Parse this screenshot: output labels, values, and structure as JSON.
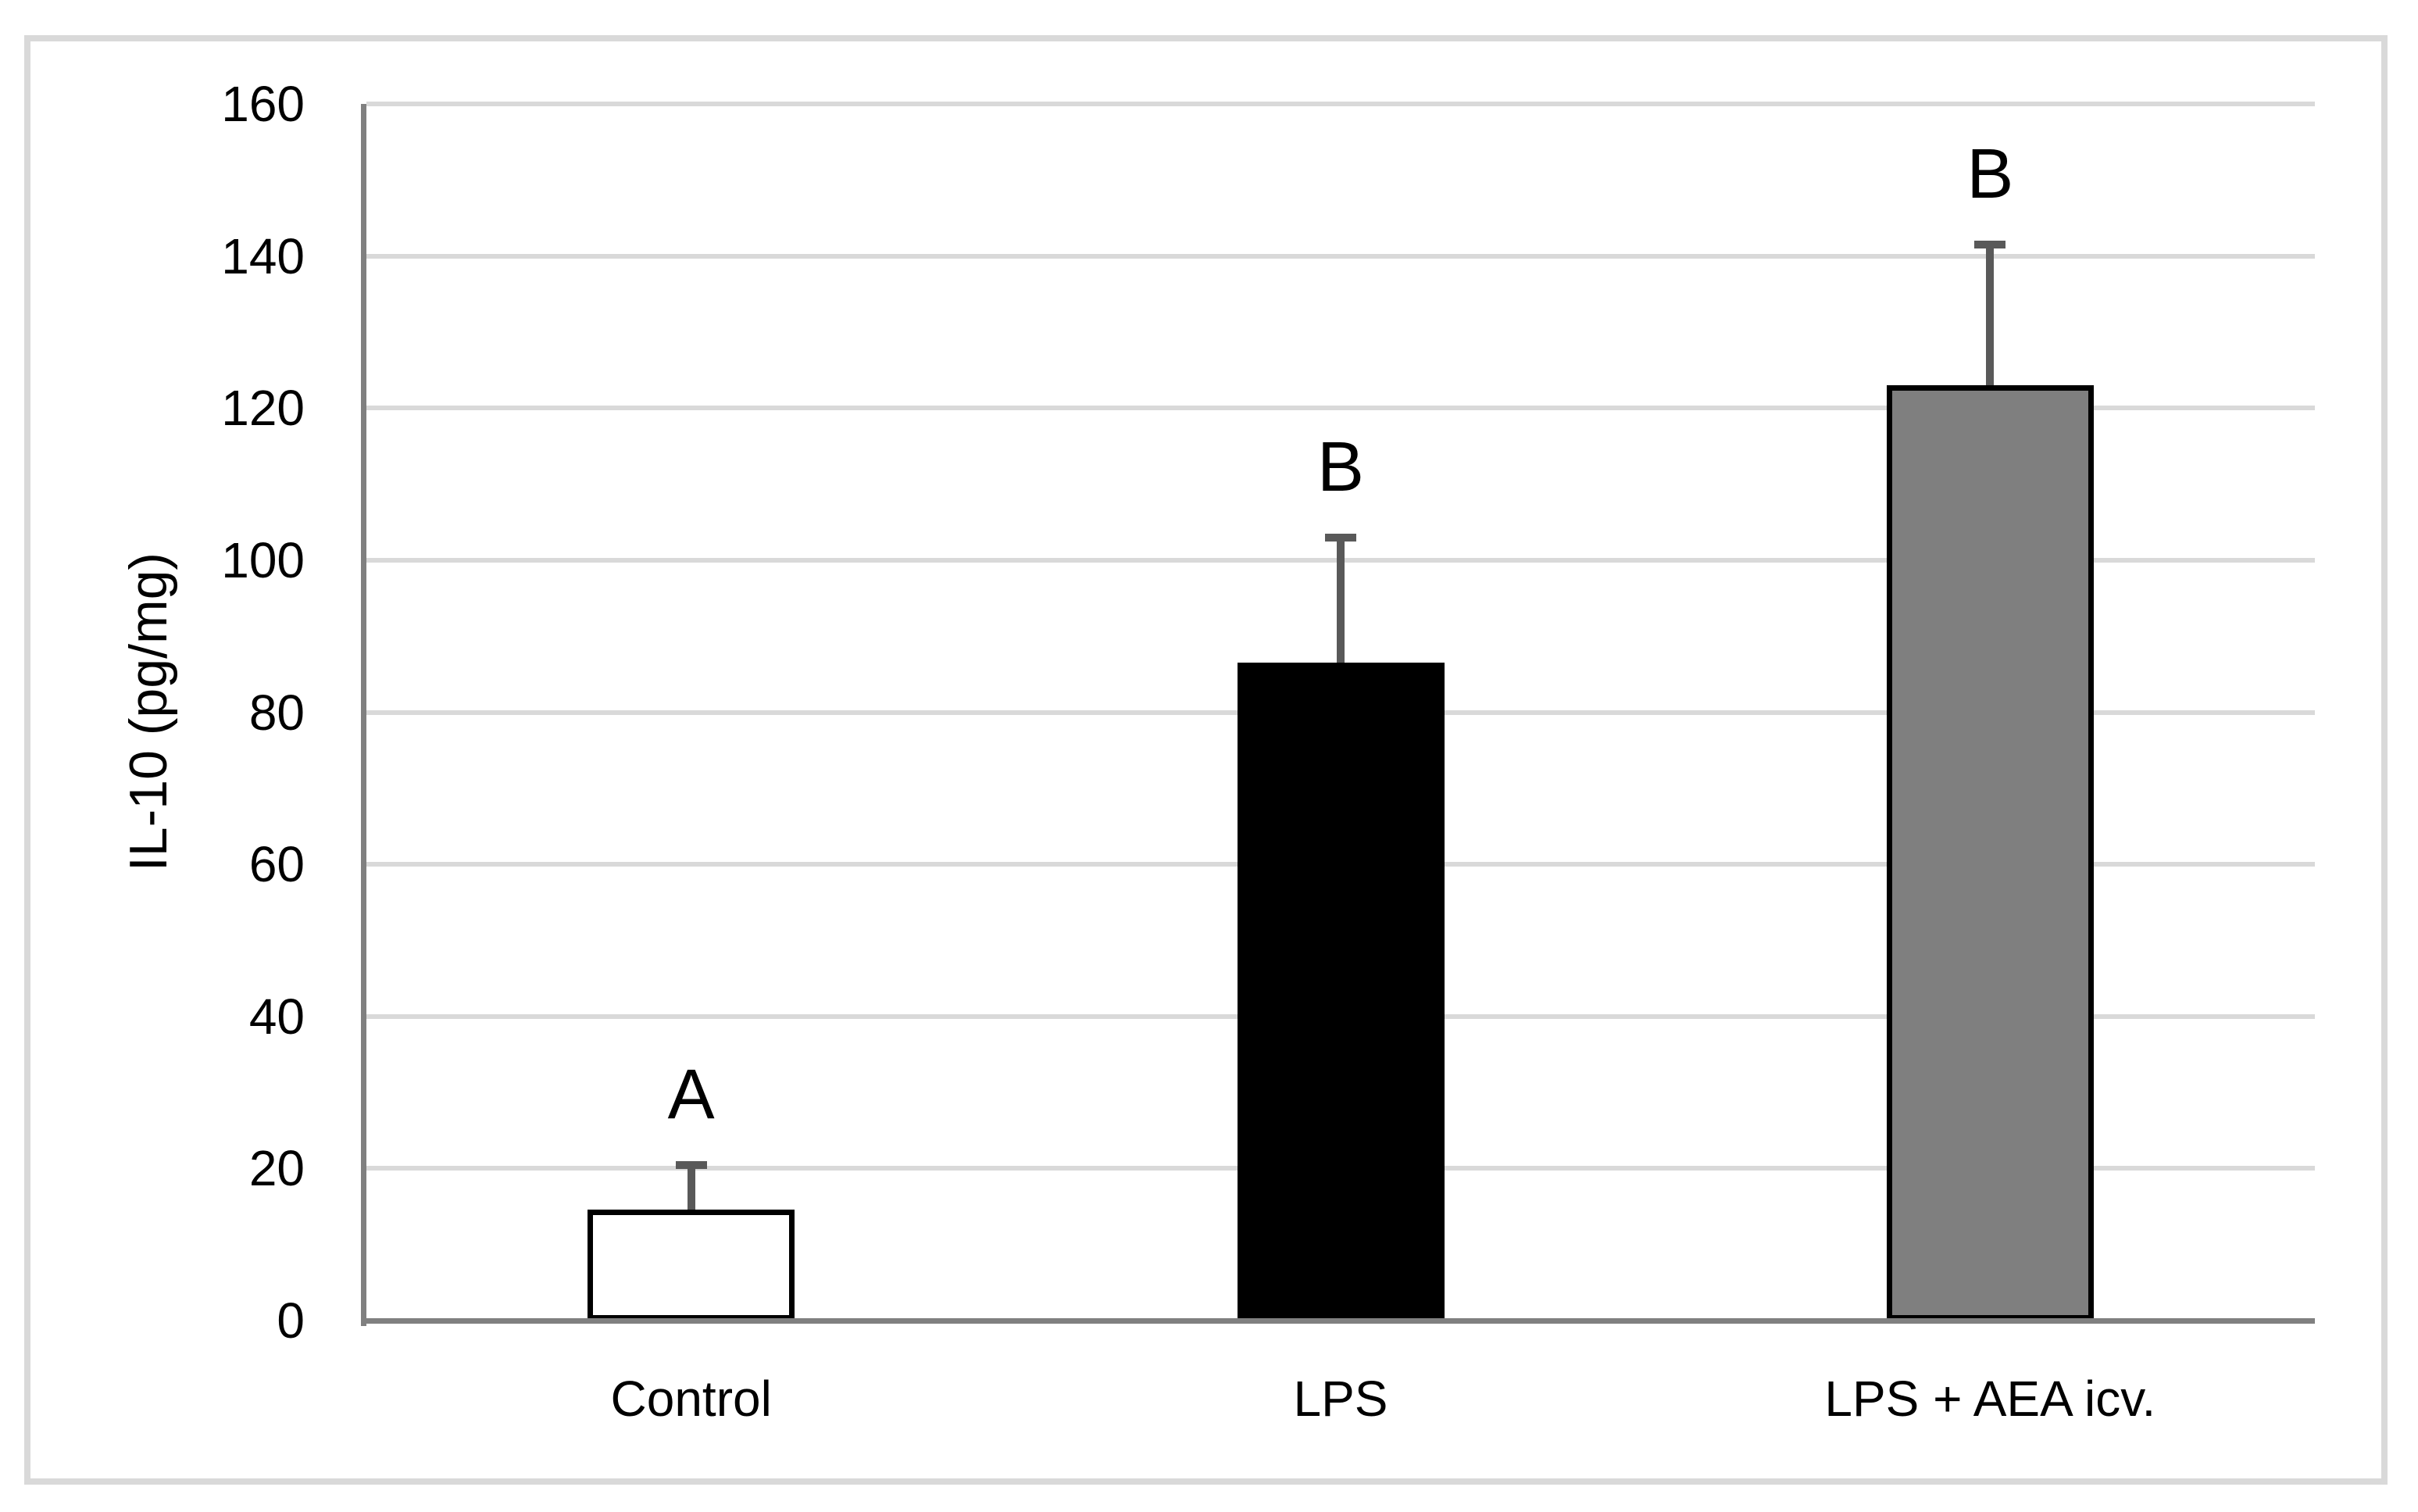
{
  "chart_data": {
    "type": "bar",
    "title": "",
    "xlabel": "",
    "ylabel": "IL-10 (pg/mg)",
    "categories": [
      "Control",
      "LPS",
      "LPS + AEA icv."
    ],
    "values": [
      14.6,
      86.5,
      123
    ],
    "errors_plus": [
      5.8,
      16.5,
      18.5
    ],
    "error_tops": [
      20.4,
      103,
      141.5
    ],
    "significance_letters": [
      "A",
      "B",
      "B"
    ],
    "yticks": [
      0,
      20,
      40,
      60,
      80,
      100,
      120,
      140,
      160
    ],
    "ylim": [
      0,
      160
    ],
    "grid": true,
    "legend": "none",
    "bar_fill_colors": [
      "#ffffff",
      "#000000",
      "#7f7f7f"
    ],
    "bar_border_color": "#000000",
    "error_bar_color": "#595959",
    "gridline_color": "#d9d9d9",
    "axis_line_color": "#808080",
    "outer_border_color": "#d9d9d9",
    "text_color": "#000000",
    "background_color": "#ffffff"
  }
}
